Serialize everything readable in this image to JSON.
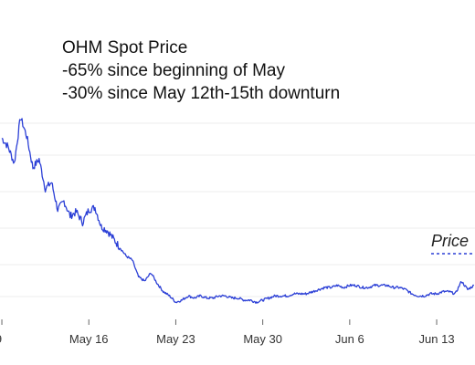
{
  "chart_data": {
    "type": "line",
    "title": "",
    "xlabel": "",
    "ylabel": "",
    "annotations": [
      "OHM Spot Price",
      "-65% since beginning of May",
      "-30% since May 12th-15th downturn"
    ],
    "x_ticks": [
      "9",
      "May 16",
      "May 23",
      "May 30",
      "Jun 6",
      "Jun 13"
    ],
    "legend": {
      "position": "right",
      "entries": [
        "Price"
      ]
    },
    "grid": {
      "horizontal": true,
      "vertical": false
    },
    "colors": {
      "series": "#2b3fd6",
      "grid": "#ececec",
      "legend_dash": "#2b3fd6"
    },
    "series": [
      {
        "name": "Price",
        "x": [
          "May 9",
          "May 9",
          "May 10",
          "May 10",
          "May 11",
          "May 11",
          "May 12",
          "May 12",
          "May 13",
          "May 13",
          "May 14",
          "May 14",
          "May 15",
          "May 15",
          "May 16",
          "May 16",
          "May 17",
          "May 17",
          "May 18",
          "May 18",
          "May 19",
          "May 19",
          "May 20",
          "May 20",
          "May 21",
          "May 21",
          "May 22",
          "May 22",
          "May 23",
          "May 23",
          "May 24",
          "May 24",
          "May 25",
          "May 25",
          "May 26",
          "May 26",
          "May 27",
          "May 27",
          "May 28",
          "May 28",
          "May 29",
          "May 29",
          "May 30",
          "May 30",
          "May 31",
          "May 31",
          "Jun 1",
          "Jun 1",
          "Jun 2",
          "Jun 2",
          "Jun 3",
          "Jun 3",
          "Jun 4",
          "Jun 4",
          "Jun 5",
          "Jun 5",
          "Jun 6",
          "Jun 6",
          "Jun 7",
          "Jun 7",
          "Jun 8",
          "Jun 8",
          "Jun 9",
          "Jun 9",
          "Jun 10",
          "Jun 10",
          "Jun 11",
          "Jun 11",
          "Jun 12",
          "Jun 12",
          "Jun 13",
          "Jun 13",
          "Jun 14",
          "Jun 14",
          "Jun 15",
          "Jun 15",
          "Jun 16"
        ],
        "values": [
          132,
          128,
          120,
          142,
          133,
          118,
          122,
          108,
          111,
          98,
          102,
          95,
          97,
          92,
          98,
          99,
          90,
          88,
          84,
          80,
          76,
          74,
          66,
          64,
          68,
          63,
          59,
          57,
          54,
          55,
          57,
          56,
          57,
          56,
          56,
          57,
          57,
          56,
          56,
          55,
          55,
          54,
          55,
          56,
          57,
          57,
          57,
          58,
          58,
          58,
          59,
          60,
          61,
          61,
          62,
          61,
          62,
          62,
          61,
          61,
          62,
          62,
          62,
          61,
          61,
          60,
          58,
          57,
          57,
          58,
          58,
          59,
          59,
          58,
          64,
          60,
          62
        ]
      }
    ],
    "ylim": [
      48,
      150
    ]
  }
}
